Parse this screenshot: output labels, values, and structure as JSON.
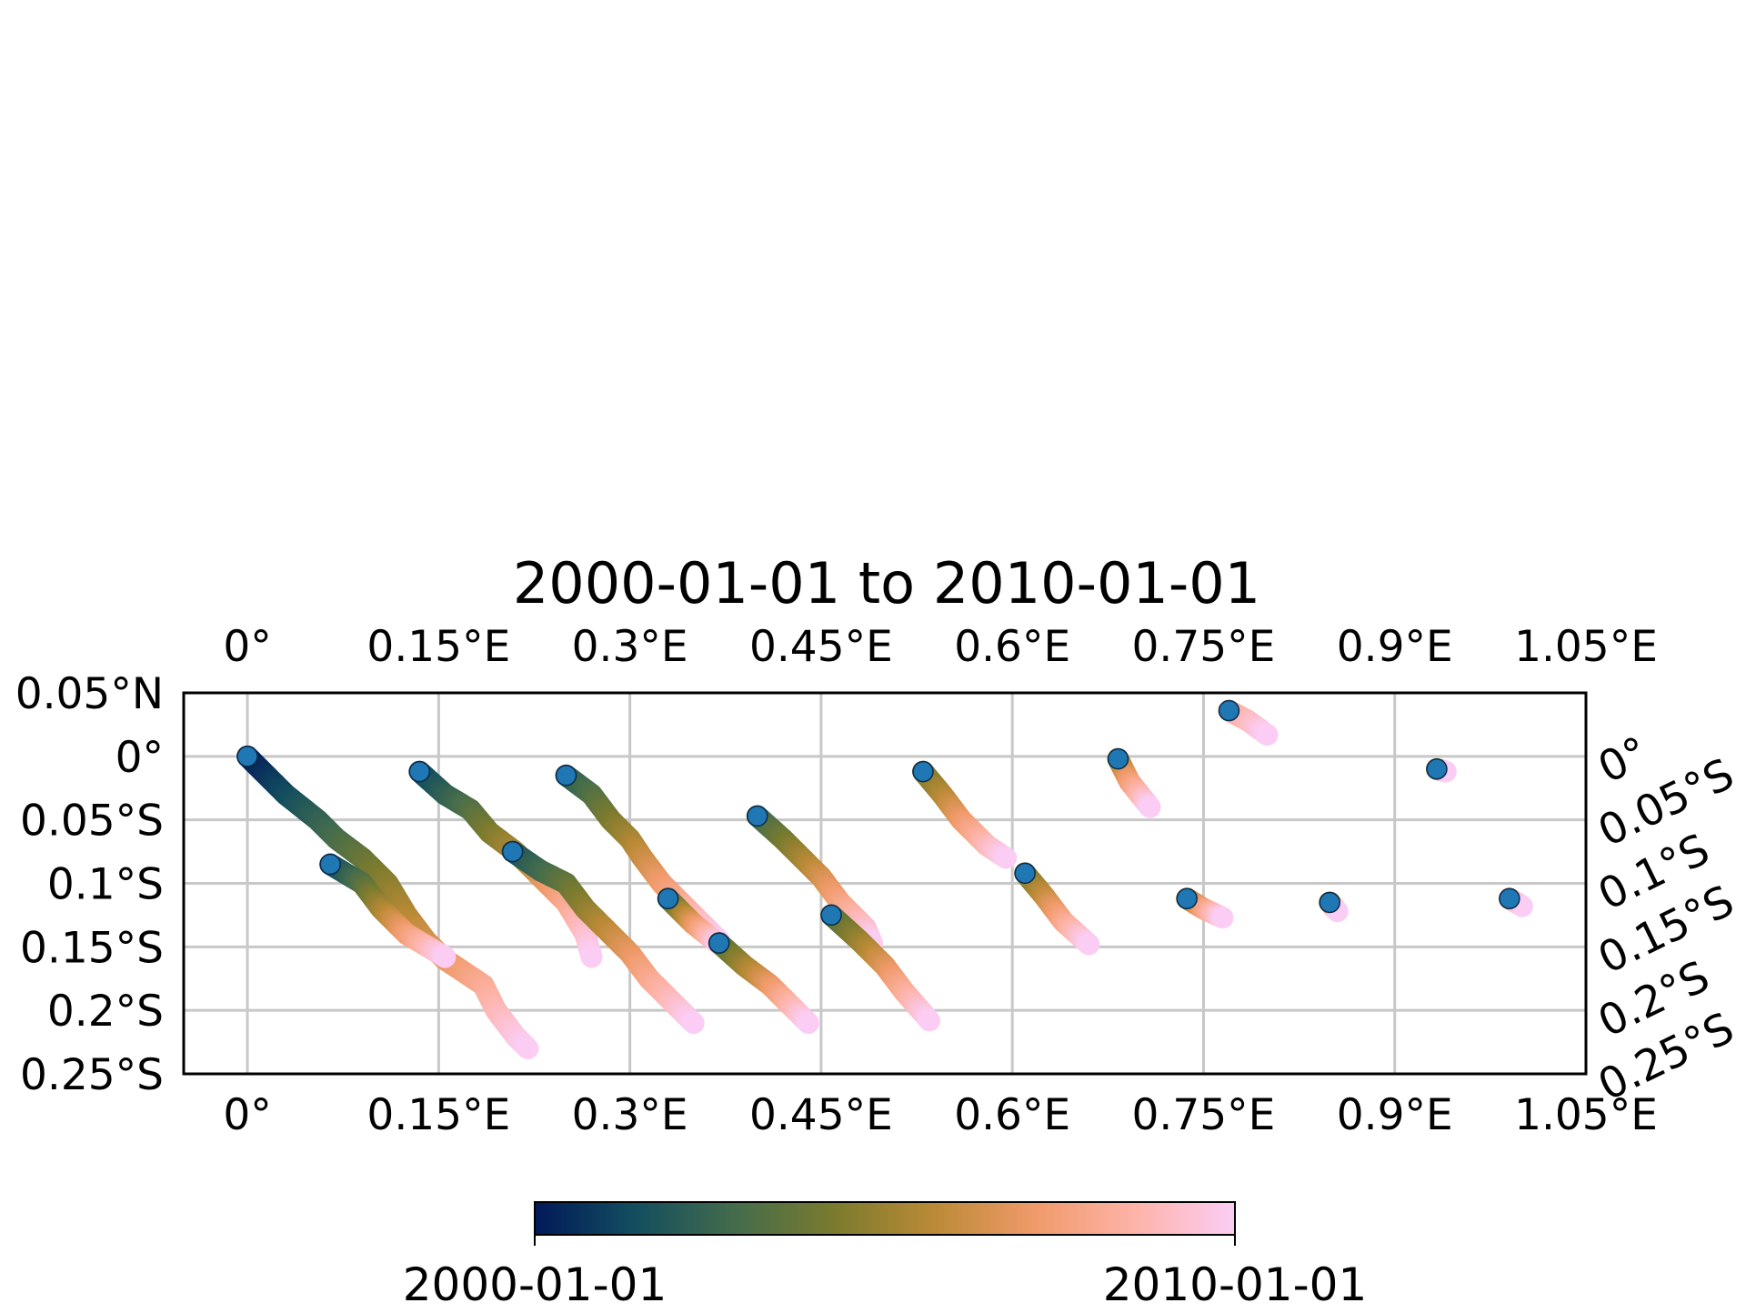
{
  "chart_data": {
    "type": "scatter",
    "title": "2000-01-01 to 2010-01-01",
    "x_ticks": [
      {
        "value": 0.0,
        "label": "0°"
      },
      {
        "value": 0.15,
        "label": "0.15°E"
      },
      {
        "value": 0.3,
        "label": "0.3°E"
      },
      {
        "value": 0.45,
        "label": "0.45°E"
      },
      {
        "value": 0.6,
        "label": "0.6°E"
      },
      {
        "value": 0.75,
        "label": "0.75°E"
      },
      {
        "value": 0.9,
        "label": "0.9°E"
      },
      {
        "value": 1.05,
        "label": "1.05°E"
      }
    ],
    "y_ticks_left": [
      {
        "value": 0.05,
        "label": "0.05°N"
      },
      {
        "value": 0.0,
        "label": "0°"
      },
      {
        "value": -0.05,
        "label": "0.05°S"
      },
      {
        "value": -0.1,
        "label": "0.1°S"
      },
      {
        "value": -0.15,
        "label": "0.15°S"
      },
      {
        "value": -0.2,
        "label": "0.2°S"
      },
      {
        "value": -0.25,
        "label": "0.25°S"
      }
    ],
    "y_ticks_right": [
      {
        "value": 0.0,
        "label": "0°"
      },
      {
        "value": -0.05,
        "label": "0.05°S"
      },
      {
        "value": -0.1,
        "label": "0.1°S"
      },
      {
        "value": -0.15,
        "label": "0.15°S"
      },
      {
        "value": -0.2,
        "label": "0.2°S"
      },
      {
        "value": -0.25,
        "label": "0.25°S"
      }
    ],
    "xlim": [
      -0.05,
      1.05
    ],
    "ylim": [
      -0.25,
      0.05
    ],
    "grid": true,
    "colorbar": {
      "colormap": "batlow",
      "colors": [
        "#011959",
        "#134e5f",
        "#446c4c",
        "#7b7b2e",
        "#bb8a36",
        "#f09a6a",
        "#fdb3a8",
        "#fbcdf5"
      ],
      "min_label": "2000-01-01",
      "max_label": "2010-01-01",
      "placement": "bottom"
    },
    "start_marker_color": "#1f77b4",
    "tracks": [
      {
        "start_date": "2000-01-01",
        "points": [
          [
            0.0,
            0.0
          ],
          [
            0.03,
            -0.03
          ],
          [
            0.055,
            -0.05
          ],
          [
            0.07,
            -0.065
          ],
          [
            0.09,
            -0.08
          ],
          [
            0.11,
            -0.1
          ],
          [
            0.125,
            -0.125
          ],
          [
            0.14,
            -0.145
          ],
          [
            0.155,
            -0.16
          ],
          [
            0.17,
            -0.17
          ],
          [
            0.185,
            -0.18
          ],
          [
            0.195,
            -0.2
          ],
          [
            0.21,
            -0.22
          ],
          [
            0.22,
            -0.23
          ]
        ]
      },
      {
        "start_date": "2001-01-01",
        "points": [
          [
            0.065,
            -0.085
          ],
          [
            0.09,
            -0.1
          ],
          [
            0.105,
            -0.12
          ],
          [
            0.125,
            -0.14
          ],
          [
            0.155,
            -0.158
          ]
        ]
      },
      {
        "start_date": "2001-01-01",
        "points": [
          [
            0.135,
            -0.012
          ],
          [
            0.155,
            -0.03
          ],
          [
            0.175,
            -0.042
          ],
          [
            0.19,
            -0.06
          ],
          [
            0.21,
            -0.075
          ],
          [
            0.23,
            -0.095
          ],
          [
            0.25,
            -0.115
          ],
          [
            0.265,
            -0.14
          ],
          [
            0.27,
            -0.158
          ]
        ]
      },
      {
        "start_date": "2001-07-01",
        "points": [
          [
            0.208,
            -0.075
          ],
          [
            0.23,
            -0.09
          ],
          [
            0.25,
            -0.1
          ],
          [
            0.265,
            -0.12
          ],
          [
            0.28,
            -0.135
          ],
          [
            0.3,
            -0.155
          ],
          [
            0.315,
            -0.175
          ],
          [
            0.33,
            -0.19
          ],
          [
            0.35,
            -0.21
          ]
        ]
      },
      {
        "start_date": "2002-01-01",
        "points": [
          [
            0.25,
            -0.015
          ],
          [
            0.27,
            -0.03
          ],
          [
            0.285,
            -0.05
          ],
          [
            0.3,
            -0.065
          ],
          [
            0.31,
            -0.08
          ],
          [
            0.325,
            -0.1
          ],
          [
            0.345,
            -0.12
          ],
          [
            0.37,
            -0.145
          ]
        ]
      },
      {
        "start_date": "2003-01-01",
        "points": [
          [
            0.33,
            -0.112
          ],
          [
            0.35,
            -0.132
          ],
          [
            0.37,
            -0.148
          ]
        ]
      },
      {
        "start_date": "2003-01-01",
        "points": [
          [
            0.37,
            -0.147
          ],
          [
            0.39,
            -0.165
          ],
          [
            0.41,
            -0.18
          ],
          [
            0.425,
            -0.195
          ],
          [
            0.44,
            -0.21
          ]
        ]
      },
      {
        "start_date": "2002-07-01",
        "points": [
          [
            0.4,
            -0.047
          ],
          [
            0.42,
            -0.065
          ],
          [
            0.435,
            -0.08
          ],
          [
            0.45,
            -0.095
          ],
          [
            0.465,
            -0.115
          ],
          [
            0.485,
            -0.135
          ],
          [
            0.49,
            -0.147
          ]
        ]
      },
      {
        "start_date": "2003-01-01",
        "points": [
          [
            0.458,
            -0.125
          ],
          [
            0.48,
            -0.145
          ],
          [
            0.5,
            -0.165
          ],
          [
            0.515,
            -0.185
          ],
          [
            0.535,
            -0.208
          ]
        ]
      },
      {
        "start_date": "2004-01-01",
        "points": [
          [
            0.53,
            -0.012
          ],
          [
            0.545,
            -0.03
          ],
          [
            0.56,
            -0.05
          ],
          [
            0.58,
            -0.07
          ],
          [
            0.595,
            -0.08
          ]
        ]
      },
      {
        "start_date": "2004-01-01",
        "points": [
          [
            0.61,
            -0.092
          ],
          [
            0.625,
            -0.11
          ],
          [
            0.64,
            -0.13
          ],
          [
            0.66,
            -0.148
          ]
        ]
      },
      {
        "start_date": "2005-01-01",
        "points": [
          [
            0.683,
            -0.002
          ],
          [
            0.692,
            -0.02
          ],
          [
            0.7,
            -0.03
          ],
          [
            0.708,
            -0.04
          ]
        ]
      },
      {
        "start_date": "2008-01-01",
        "points": [
          [
            0.77,
            0.036
          ],
          [
            0.785,
            0.028
          ],
          [
            0.8,
            0.017
          ]
        ]
      },
      {
        "start_date": "2005-01-01",
        "points": [
          [
            0.737,
            -0.112
          ],
          [
            0.75,
            -0.12
          ],
          [
            0.765,
            -0.127
          ]
        ]
      },
      {
        "start_date": "2005-01-01",
        "points": [
          [
            0.849,
            -0.115
          ],
          [
            0.855,
            -0.122
          ]
        ]
      },
      {
        "start_date": "2005-01-01",
        "points": [
          [
            0.933,
            -0.01
          ],
          [
            0.94,
            -0.012
          ]
        ]
      },
      {
        "start_date": "2008-01-01",
        "points": [
          [
            0.99,
            -0.112
          ],
          [
            1.0,
            -0.118
          ]
        ]
      }
    ]
  }
}
